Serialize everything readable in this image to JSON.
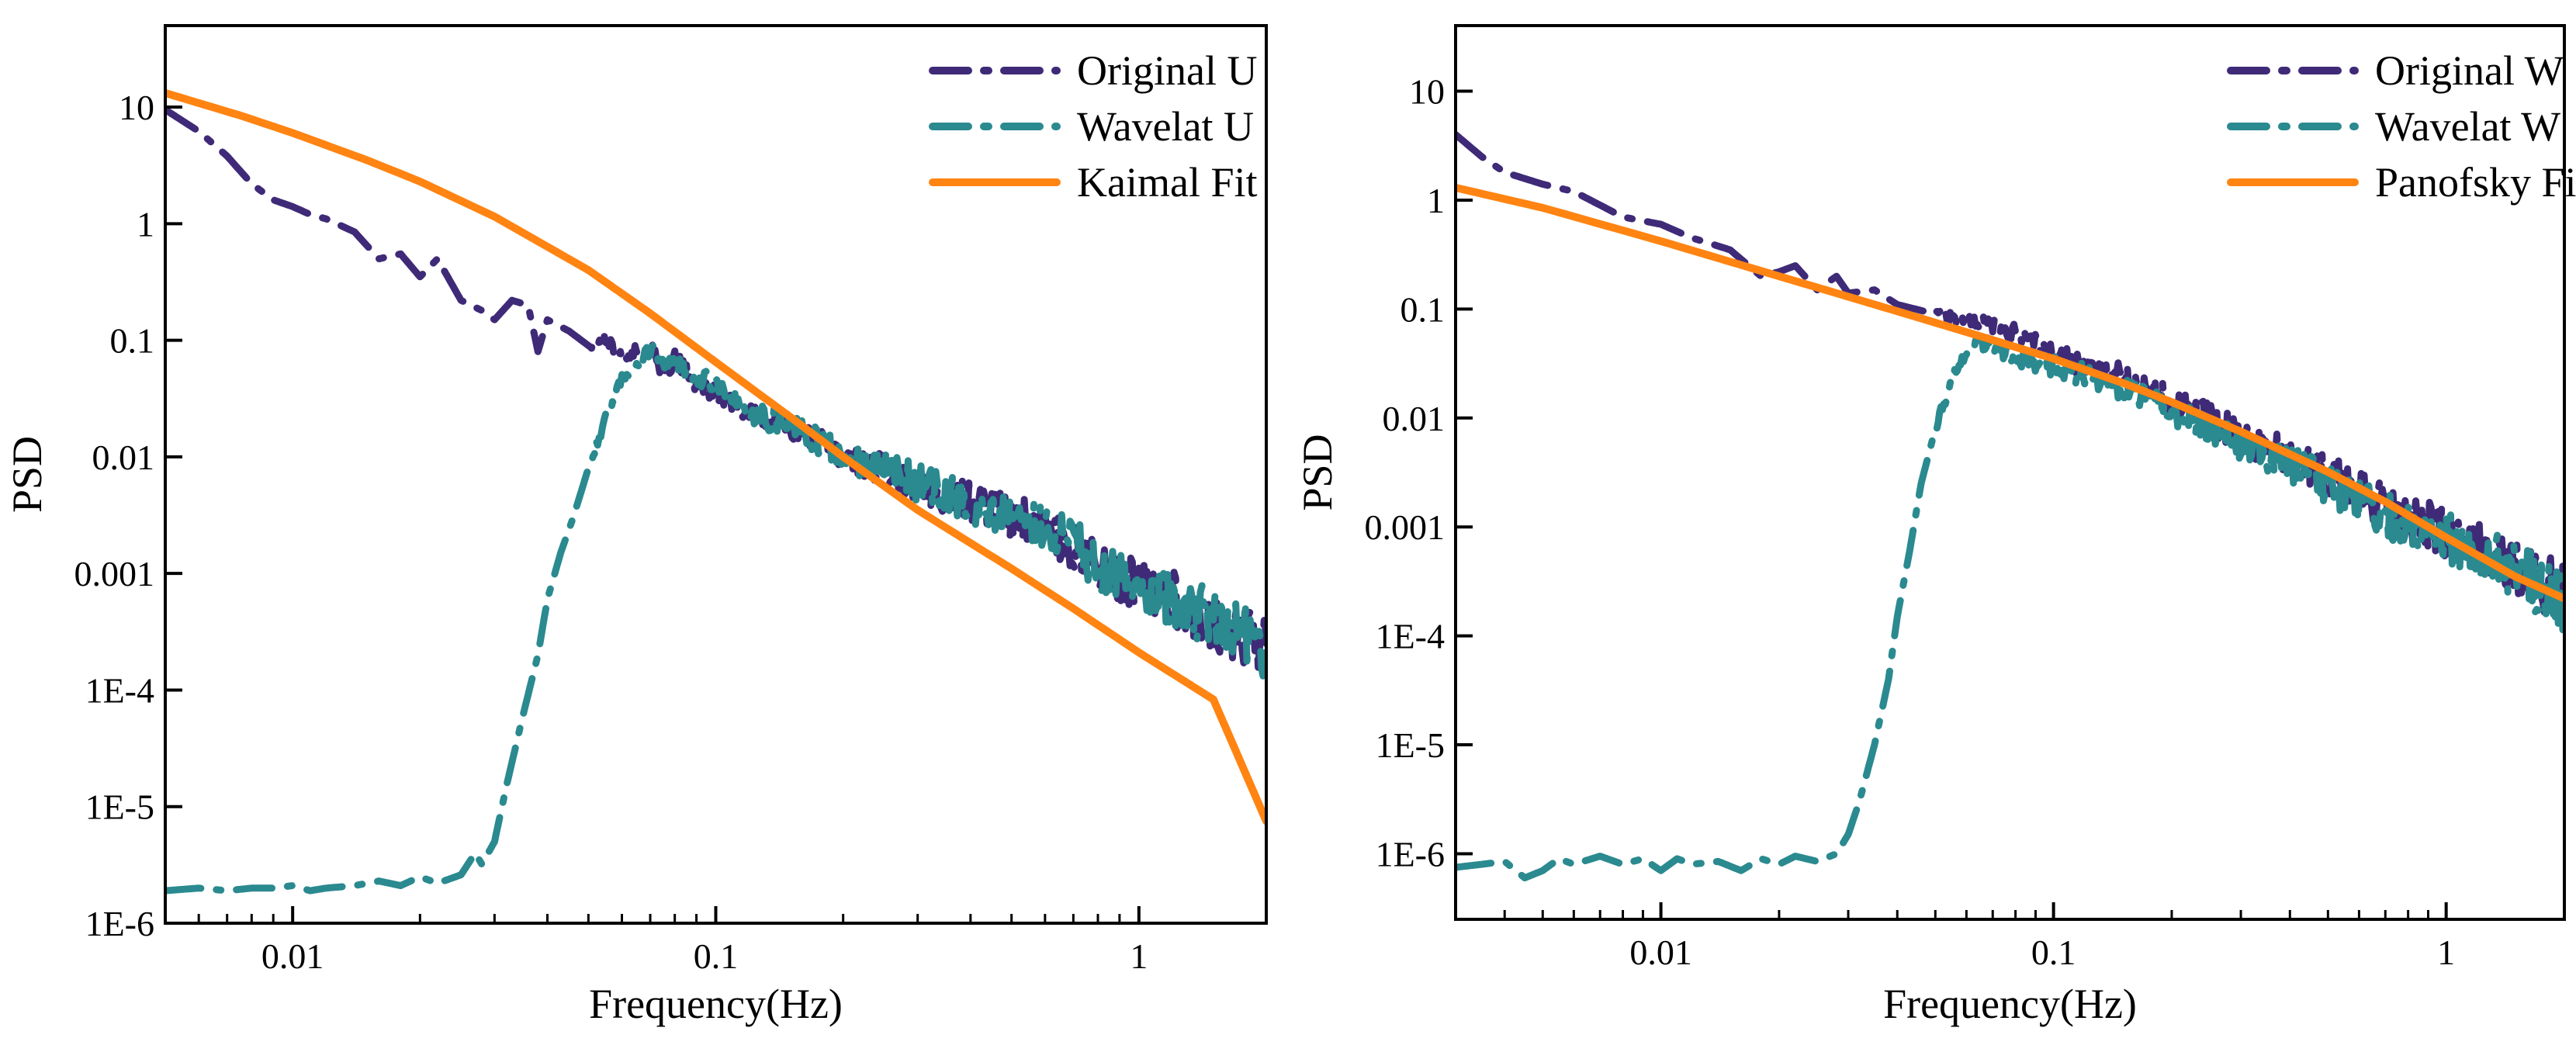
{
  "chart_data": [
    {
      "type": "line",
      "xscale": "log",
      "yscale": "log",
      "xlabel": "Frequency(Hz)",
      "ylabel": "PSD",
      "xlim": [
        0.005,
        2
      ],
      "ylim": [
        1e-06,
        50
      ],
      "xticks": [
        {
          "value": 0.01,
          "label": "0.01"
        },
        {
          "value": 0.1,
          "label": "0.1"
        },
        {
          "value": 1,
          "label": "1"
        }
      ],
      "yticks": [
        {
          "value": 10,
          "label": "10"
        },
        {
          "value": 1,
          "label": "1"
        },
        {
          "value": 0.1,
          "label": "0.1"
        },
        {
          "value": 0.01,
          "label": "0.01"
        },
        {
          "value": 0.001,
          "label": "0.001"
        },
        {
          "value": 0.0001,
          "label": "1E-4"
        },
        {
          "value": 1e-05,
          "label": "1E-5"
        },
        {
          "value": 1e-06,
          "label": "1E-6"
        }
      ],
      "legend_position": "top-right",
      "series": [
        {
          "name": "Original U",
          "color": "#3f2a78",
          "style": "dashdot",
          "x": [
            0.005,
            0.006,
            0.007,
            0.008,
            0.009,
            0.01,
            0.011,
            0.012,
            0.014,
            0.016,
            0.018,
            0.02,
            0.022,
            0.025,
            0.028,
            0.03,
            0.033,
            0.036,
            0.038,
            0.04,
            0.045,
            0.05,
            0.055,
            0.06,
            0.065,
            0.07,
            0.075,
            0.08,
            0.09,
            0.1,
            0.12,
            0.15,
            0.2,
            0.25,
            0.3,
            0.4,
            0.5,
            0.6,
            0.7,
            0.8,
            1,
            1.2,
            1.5,
            1.8,
            2
          ],
          "values": [
            9.5,
            6.2,
            3.8,
            2.2,
            1.6,
            1.4,
            1.2,
            1.1,
            0.85,
            0.5,
            0.55,
            0.35,
            0.5,
            0.22,
            0.18,
            0.15,
            0.22,
            0.2,
            0.08,
            0.15,
            0.12,
            0.09,
            0.1,
            0.07,
            0.08,
            0.09,
            0.05,
            0.07,
            0.04,
            0.035,
            0.025,
            0.018,
            0.01,
            0.008,
            0.006,
            0.004,
            0.003,
            0.0025,
            0.0018,
            0.0012,
            0.0008,
            0.0006,
            0.0004,
            0.0003,
            0.00025
          ]
        },
        {
          "name": "Wavelat U",
          "color": "#2a8a8f",
          "style": "dashdot",
          "x": [
            0.005,
            0.006,
            0.007,
            0.008,
            0.009,
            0.01,
            0.011,
            0.012,
            0.014,
            0.016,
            0.018,
            0.02,
            0.022,
            0.025,
            0.027,
            0.028,
            0.03,
            0.032,
            0.035,
            0.038,
            0.04,
            0.043,
            0.046,
            0.05,
            0.053,
            0.056,
            0.06,
            0.065,
            0.07,
            0.075,
            0.08,
            0.09,
            0.1,
            0.12,
            0.15,
            0.2,
            0.25,
            0.3,
            0.4,
            0.5,
            0.6,
            0.7,
            0.8,
            1,
            1.2,
            1.5,
            1.8,
            2
          ],
          "values": [
            1.9e-06,
            2e-06,
            1.9e-06,
            2e-06,
            2e-06,
            2.1e-06,
            1.9e-06,
            2e-06,
            2.1e-06,
            2.3e-06,
            2.1e-06,
            2.5e-06,
            2.2e-06,
            2.6e-06,
            4e-06,
            3.2e-06,
            5e-06,
            1.5e-05,
            6e-05,
            0.0002,
            0.0006,
            0.0015,
            0.003,
            0.008,
            0.015,
            0.025,
            0.045,
            0.06,
            0.08,
            0.07,
            0.06,
            0.05,
            0.04,
            0.025,
            0.018,
            0.01,
            0.008,
            0.006,
            0.004,
            0.003,
            0.0025,
            0.0018,
            0.0012,
            0.0008,
            0.0006,
            0.0004,
            0.0003,
            0.00018
          ]
        },
        {
          "name": "Kaimal Fit",
          "color": "#ff8412",
          "style": "solid",
          "x": [
            0.005,
            0.0075,
            0.01,
            0.015,
            0.02,
            0.03,
            0.05,
            0.07,
            0.1,
            0.15,
            0.2,
            0.3,
            0.5,
            0.7,
            1,
            1.5,
            2
          ],
          "values": [
            13.2,
            8.5,
            6.0,
            3.5,
            2.3,
            1.15,
            0.4,
            0.17,
            0.065,
            0.022,
            0.01,
            0.0035,
            0.0011,
            0.0005,
            0.00021,
            8.3e-05,
            7.5e-06
          ]
        }
      ]
    },
    {
      "type": "line",
      "xscale": "log",
      "yscale": "log",
      "xlabel": "Frequency(Hz)",
      "ylabel": "PSD",
      "xlim": [
        0.003,
        2
      ],
      "ylim": [
        2.5e-07,
        40
      ],
      "xticks": [
        {
          "value": 0.01,
          "label": "0.01"
        },
        {
          "value": 0.1,
          "label": "0.1"
        },
        {
          "value": 1,
          "label": "1"
        }
      ],
      "yticks": [
        {
          "value": 10,
          "label": "10"
        },
        {
          "value": 1,
          "label": "1"
        },
        {
          "value": 0.1,
          "label": "0.1"
        },
        {
          "value": 0.01,
          "label": "0.01"
        },
        {
          "value": 0.001,
          "label": "0.001"
        },
        {
          "value": 0.0001,
          "label": "1E-4"
        },
        {
          "value": 1e-05,
          "label": "1E-5"
        },
        {
          "value": 1e-06,
          "label": "1E-6"
        }
      ],
      "legend_position": "top-right",
      "series": [
        {
          "name": "Original W",
          "color": "#3f2a78",
          "style": "dashdot",
          "x": [
            0.003,
            0.0035,
            0.004,
            0.005,
            0.006,
            0.007,
            0.008,
            0.01,
            0.012,
            0.015,
            0.018,
            0.02,
            0.022,
            0.025,
            0.028,
            0.03,
            0.035,
            0.04,
            0.05,
            0.06,
            0.07,
            0.08,
            0.1,
            0.12,
            0.15,
            0.2,
            0.3,
            0.5,
            0.7,
            1,
            1.5,
            2
          ],
          "values": [
            4,
            2.5,
            1.8,
            1.4,
            1.2,
            0.9,
            0.7,
            0.6,
            0.45,
            0.35,
            0.2,
            0.22,
            0.25,
            0.15,
            0.2,
            0.14,
            0.15,
            0.11,
            0.09,
            0.08,
            0.07,
            0.06,
            0.04,
            0.03,
            0.025,
            0.015,
            0.007,
            0.003,
            0.0015,
            0.0009,
            0.0004,
            0.00025
          ]
        },
        {
          "name": "Wavelat W",
          "color": "#2a8a8f",
          "style": "dashdot",
          "x": [
            0.003,
            0.0035,
            0.004,
            0.0045,
            0.005,
            0.0055,
            0.006,
            0.007,
            0.008,
            0.009,
            0.01,
            0.011,
            0.012,
            0.014,
            0.016,
            0.018,
            0.02,
            0.022,
            0.025,
            0.028,
            0.03,
            0.032,
            0.035,
            0.038,
            0.04,
            0.043,
            0.046,
            0.05,
            0.053,
            0.056,
            0.06,
            0.065,
            0.07,
            0.08,
            0.1,
            0.12,
            0.15,
            0.2,
            0.3,
            0.5,
            0.7,
            1,
            1.5,
            2
          ],
          "values": [
            7.5e-07,
            8e-07,
            8.5e-07,
            6e-07,
            7e-07,
            9e-07,
            8e-07,
            9.5e-07,
            8e-07,
            9e-07,
            7e-07,
            9e-07,
            8e-07,
            8.5e-07,
            7e-07,
            9e-07,
            8e-07,
            9.5e-07,
            8.5e-07,
            1e-06,
            1.5e-06,
            3e-06,
            1e-05,
            4e-05,
            0.00015,
            0.0006,
            0.0025,
            0.008,
            0.015,
            0.025,
            0.04,
            0.05,
            0.045,
            0.035,
            0.03,
            0.025,
            0.018,
            0.012,
            0.006,
            0.0025,
            0.0013,
            0.0008,
            0.0004,
            0.0002
          ]
        },
        {
          "name": "Panofsky Fit",
          "color": "#ff8412",
          "style": "solid",
          "x": [
            0.003,
            0.005,
            0.01,
            0.02,
            0.03,
            0.05,
            0.07,
            0.1,
            0.15,
            0.2,
            0.3,
            0.5,
            0.7,
            1,
            1.5,
            2
          ],
          "values": [
            1.3,
            0.85,
            0.42,
            0.2,
            0.13,
            0.075,
            0.052,
            0.035,
            0.021,
            0.014,
            0.0075,
            0.0032,
            0.0017,
            0.0008,
            0.00035,
            0.00022
          ]
        }
      ]
    }
  ]
}
